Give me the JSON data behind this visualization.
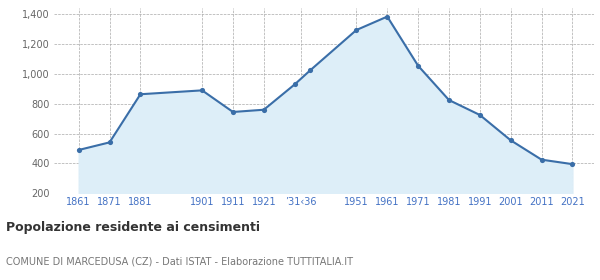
{
  "years": [
    1861,
    1871,
    1881,
    1901,
    1911,
    1921,
    1931,
    1936,
    1951,
    1961,
    1971,
    1981,
    1991,
    2001,
    2011,
    2021
  ],
  "values": [
    490,
    541,
    864,
    890,
    745,
    760,
    930,
    1024,
    1295,
    1385,
    1055,
    825,
    725,
    555,
    425,
    395
  ],
  "tick_positions": [
    1861,
    1871,
    1881,
    1901,
    1911,
    1921,
    1933,
    1951,
    1961,
    1971,
    1981,
    1991,
    2001,
    2011,
    2021
  ],
  "tick_labels": [
    "1861",
    "1871",
    "1881",
    "1901",
    "1911",
    "1921",
    "’31‹36",
    "1951",
    "1961",
    "1971",
    "1981",
    "1991",
    "2001",
    "2011",
    "2021"
  ],
  "ylim": [
    200,
    1440
  ],
  "yticks": [
    200,
    400,
    600,
    800,
    1000,
    1200,
    1400
  ],
  "ytick_labels": [
    "200",
    "400",
    "600",
    "800",
    "1,000",
    "1,200",
    "1,400"
  ],
  "line_color": "#3a6ea8",
  "fill_color": "#ddeef8",
  "marker_color": "#3a6ea8",
  "bg_color": "#ffffff",
  "grid_color": "#aaaaaa",
  "title": "Popolazione residente ai censimenti",
  "subtitle": "COMUNE DI MARCEDUSA (CZ) - Dati ISTAT - Elaborazione TUTTITALIA.IT",
  "title_color": "#333333",
  "subtitle_color": "#777777",
  "label_color": "#4472c4",
  "xlim_left": 1853,
  "xlim_right": 2028
}
